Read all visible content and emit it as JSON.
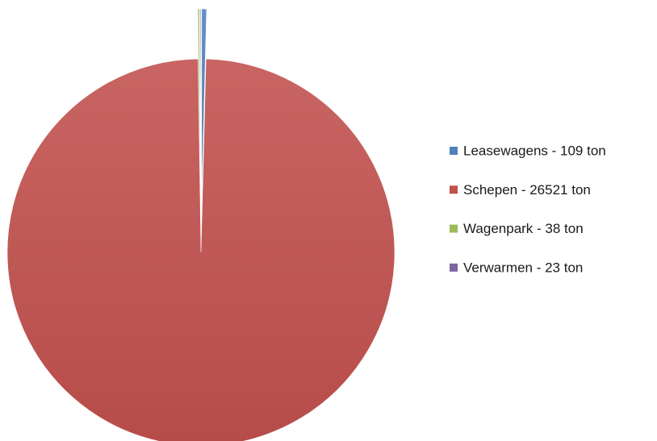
{
  "chart_data": {
    "type": "pie",
    "categories": [
      "Leasewagens - 109 ton",
      "Schepen - 26521 ton",
      "Wagenpark - 38 ton",
      "Verwarmen - 23 ton"
    ],
    "values": [
      109,
      26521,
      38,
      23
    ],
    "colors": [
      "#4f81bd",
      "#c0504d",
      "#9bbb59",
      "#8064a2"
    ],
    "legend": "right"
  }
}
